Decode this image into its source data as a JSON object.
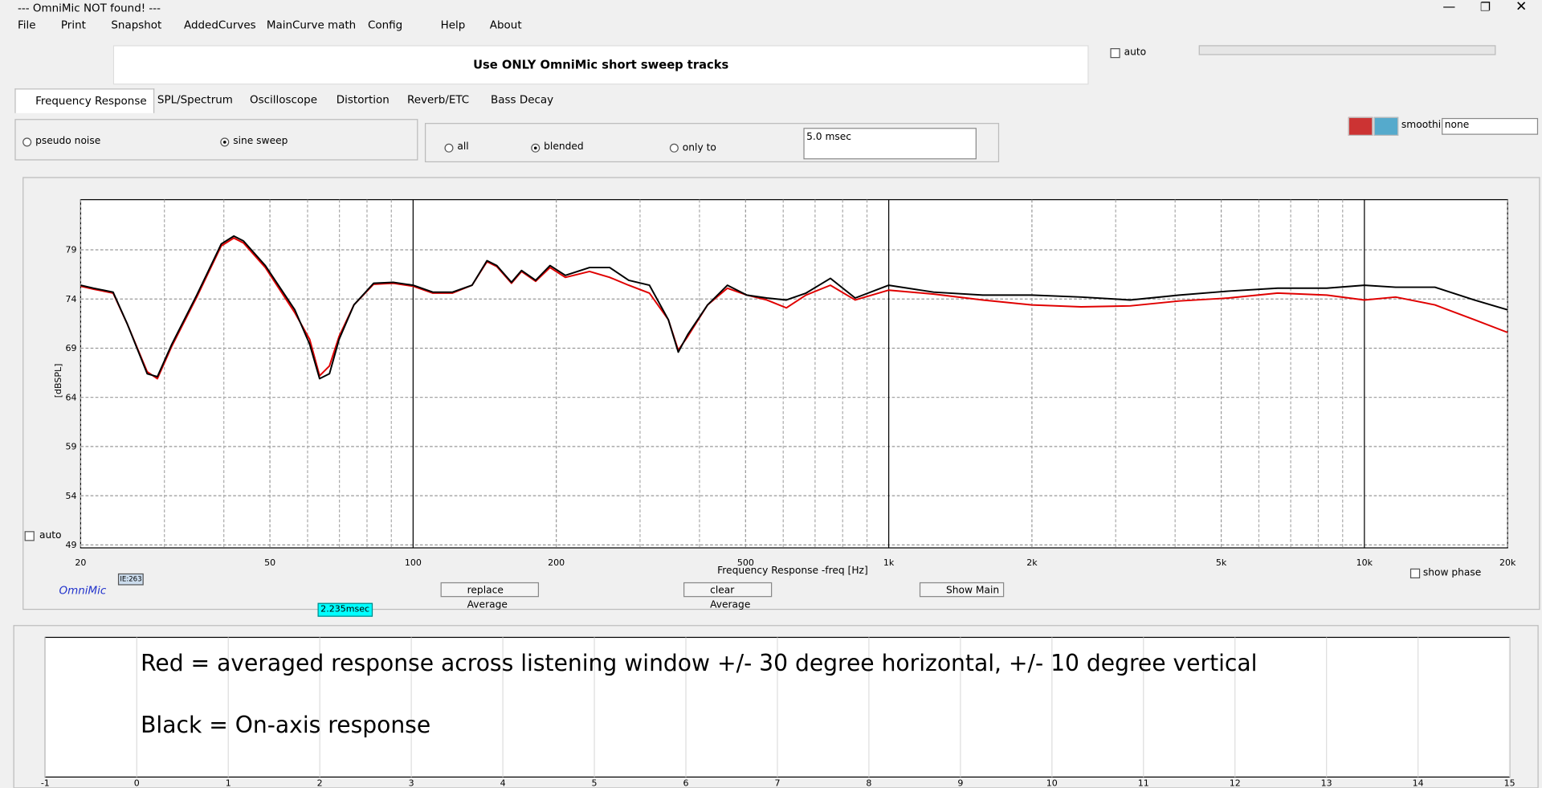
{
  "ui": {
    "title": "--- OmniMic NOT found! ---",
    "menu": [
      "File",
      "Print",
      "Snapshot",
      "AddedCurves",
      "MainCurve math",
      "Config",
      "Help",
      "About"
    ],
    "banner": "Use ONLY OmniMic short sweep tracks",
    "auto_top": "auto",
    "tabs": [
      "Frequency Response",
      "SPL/Spectrum",
      "Oscilloscope",
      "Distortion",
      "Reverb/ETC",
      "Bass Decay"
    ],
    "signal_options": [
      "pseudo noise",
      "sine sweep"
    ],
    "window_options": [
      "all",
      "blended",
      "only to"
    ],
    "window_time": "5.0 msec",
    "smoothing_label": "smoothing",
    "smoothing_value": "none",
    "plot_auto": "auto",
    "brand": "OmniMic",
    "ie_label": "IE:263",
    "buttons": [
      "replace Average",
      "clear Average",
      "Show Main"
    ],
    "show_phase": "show phase",
    "time_marker": "2.235msec"
  },
  "chart_data": {
    "type": "line",
    "xlabel": "Frequency Response -freq [Hz]",
    "ylabel": "[dBSPL]",
    "xscale": "log",
    "grid": true,
    "xlim": [
      20,
      20000
    ],
    "ylim": [
      48.7,
      84.1
    ],
    "xticks": [
      20,
      50,
      100,
      200,
      500,
      {
        "value": 1000,
        "label": "1k"
      },
      {
        "value": 2000,
        "label": "2k"
      },
      {
        "value": 5000,
        "label": "5k"
      },
      {
        "value": 10000,
        "label": "10k"
      },
      {
        "value": 20000,
        "label": "20k"
      }
    ],
    "xminor_ticks": [
      30,
      40,
      60,
      70,
      80,
      90,
      300,
      400,
      600,
      700,
      800,
      900,
      3000,
      4000,
      6000,
      7000,
      8000,
      9000
    ],
    "yticks": [
      49,
      54,
      59,
      64,
      69,
      74,
      79
    ],
    "x": [
      20,
      21.3,
      23.4,
      25.1,
      27.6,
      29.0,
      31.1,
      35.1,
      39.5,
      42.0,
      44.0,
      48.9,
      56.4,
      60.6,
      63.6,
      66.7,
      69.9,
      75.1,
      82.6,
      90.8,
      100,
      110,
      121,
      133,
      143,
      150,
      161,
      169,
      181,
      194,
      209,
      235,
      259,
      284,
      314,
      344,
      361,
      378,
      416,
      458,
      503,
      554,
      609,
      670,
      754,
      850,
      1000,
      1243,
      1577,
      2000,
      2537,
      3218,
      4083,
      5179,
      6570,
      8334,
      10000,
      11630,
      14070,
      17020,
      20000
    ],
    "series": [
      {
        "color": "#e00000",
        "values": [
          75.3,
          75.0,
          74.6,
          71.4,
          66.6,
          65.9,
          69.2,
          74.2,
          79.4,
          80.2,
          79.7,
          77.2,
          72.6,
          69.9,
          66.2,
          67.2,
          70.2,
          73.4,
          75.5,
          75.6,
          75.3,
          74.6,
          74.6,
          75.4,
          77.8,
          77.3,
          75.6,
          76.8,
          75.8,
          77.2,
          76.2,
          76.8,
          76.2,
          75.4,
          74.6,
          71.9,
          68.8,
          70.2,
          73.4,
          75.1,
          74.4,
          73.9,
          73.1,
          74.4,
          75.4,
          73.9,
          74.9,
          74.5,
          73.9,
          73.4,
          73.2,
          73.3,
          73.8,
          74.1,
          74.6,
          74.4,
          73.9,
          74.2,
          73.4,
          71.9,
          70.6
        ]
      },
      {
        "color": "#000000",
        "values": [
          75.4,
          75.1,
          74.7,
          71.4,
          66.4,
          66.1,
          69.4,
          74.4,
          79.6,
          80.4,
          79.9,
          77.4,
          72.9,
          69.4,
          65.9,
          66.4,
          69.9,
          73.4,
          75.6,
          75.7,
          75.4,
          74.7,
          74.7,
          75.4,
          77.9,
          77.4,
          75.7,
          76.9,
          75.9,
          77.4,
          76.4,
          77.2,
          77.2,
          75.9,
          75.4,
          71.9,
          68.6,
          70.4,
          73.4,
          75.4,
          74.4,
          74.1,
          73.9,
          74.6,
          76.1,
          74.1,
          75.4,
          74.7,
          74.4,
          74.4,
          74.2,
          73.9,
          74.4,
          74.8,
          75.1,
          75.1,
          75.4,
          75.2,
          75.2,
          73.9,
          72.9
        ]
      }
    ]
  },
  "lower_panel": {
    "annotations": [
      "Red = averaged response across listening window +/- 30 degree horizontal, +/- 10 degree vertical",
      "Black = On-axis response"
    ],
    "xticks": [
      -1,
      0,
      1,
      2,
      3,
      4,
      5,
      6,
      7,
      8,
      9,
      10,
      11,
      12,
      13,
      14,
      15
    ]
  }
}
